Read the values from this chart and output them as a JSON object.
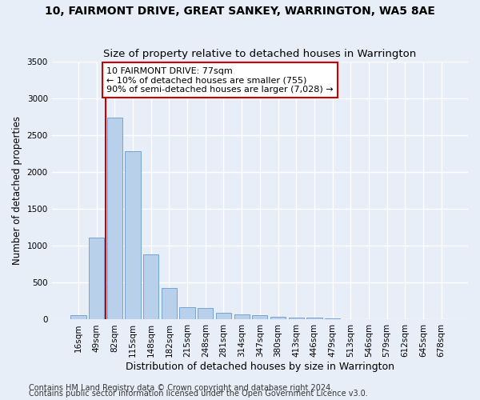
{
  "title": "10, FAIRMONT DRIVE, GREAT SANKEY, WARRINGTON, WA5 8AE",
  "subtitle": "Size of property relative to detached houses in Warrington",
  "xlabel": "Distribution of detached houses by size in Warrington",
  "ylabel": "Number of detached properties",
  "bar_color": "#b8d0ea",
  "bar_edge_color": "#6699cc",
  "categories": [
    "16sqm",
    "49sqm",
    "82sqm",
    "115sqm",
    "148sqm",
    "182sqm",
    "215sqm",
    "248sqm",
    "281sqm",
    "314sqm",
    "347sqm",
    "380sqm",
    "413sqm",
    "446sqm",
    "479sqm",
    "513sqm",
    "546sqm",
    "579sqm",
    "612sqm",
    "645sqm",
    "678sqm"
  ],
  "values": [
    55,
    1110,
    2740,
    2285,
    880,
    430,
    170,
    160,
    90,
    65,
    55,
    35,
    30,
    25,
    20,
    10,
    10,
    5,
    5,
    3,
    2
  ],
  "ylim": [
    0,
    3500
  ],
  "yticks": [
    0,
    500,
    1000,
    1500,
    2000,
    2500,
    3000,
    3500
  ],
  "vline_color": "#cc0000",
  "vline_x": 1.5,
  "annotation_text": "10 FAIRMONT DRIVE: 77sqm\n← 10% of detached houses are smaller (755)\n90% of semi-detached houses are larger (7,028) →",
  "annotation_box_color": "#ffffff",
  "annotation_box_edge": "#cc0000",
  "footnote1": "Contains HM Land Registry data © Crown copyright and database right 2024.",
  "footnote2": "Contains public sector information licensed under the Open Government Licence v3.0.",
  "bg_color": "#e8eef8",
  "plot_bg_color": "#e8eef8",
  "grid_color": "#ffffff",
  "title_fontsize": 10,
  "subtitle_fontsize": 9.5,
  "xlabel_fontsize": 9,
  "ylabel_fontsize": 8.5,
  "tick_fontsize": 7.5,
  "annotation_fontsize": 8,
  "footnote_fontsize": 7
}
